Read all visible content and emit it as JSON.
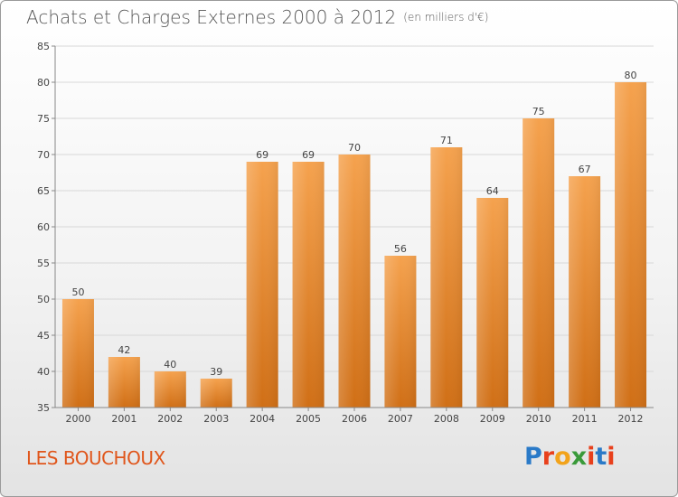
{
  "title": "Achats et Charges Externes 2000 à 2012",
  "subtitle": "(en milliers d'€)",
  "commune": "LES BOUCHOUX",
  "logo": {
    "text": "Proxiti",
    "letters": [
      "P",
      "r",
      "o",
      "x",
      "i",
      "t",
      "i"
    ],
    "colors": [
      "#2a7ac8",
      "#e8401c",
      "#f2a31b",
      "#3a9a3a",
      "#e8401c",
      "#2a7ac8",
      "#e8401c"
    ]
  },
  "colors": {
    "bar_top": "#f5a24e",
    "bar_bottom": "#d06f16",
    "title": "#555555",
    "commune": "#e0561b"
  },
  "chart_data": {
    "type": "bar",
    "categories": [
      "2000",
      "2001",
      "2002",
      "2003",
      "2004",
      "2005",
      "2006",
      "2007",
      "2008",
      "2009",
      "2010",
      "2011",
      "2012"
    ],
    "values": [
      50,
      42,
      40,
      39,
      69,
      69,
      70,
      56,
      71,
      64,
      75,
      67,
      80
    ],
    "title": "Achats et Charges Externes 2000 à 2012",
    "ylim": [
      35,
      85
    ],
    "yticks": [
      35,
      40,
      45,
      50,
      55,
      60,
      65,
      70,
      75,
      80,
      85
    ],
    "grid": true,
    "legend": false
  }
}
